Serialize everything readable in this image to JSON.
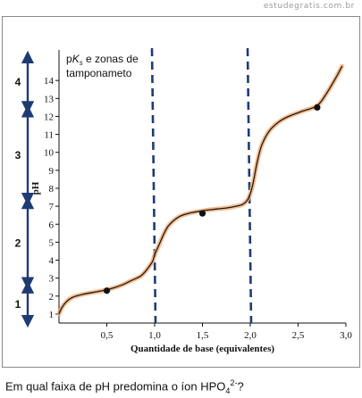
{
  "watermark": "estudegratis.com.br",
  "annotation": {
    "line1_prefix": "p",
    "line1_k": "K",
    "line1_sub": "s",
    "line1_suffix": " e zonas de",
    "line2": "tamponameto"
  },
  "question": {
    "text": "Em qual faixa de pH predomina o íon HPO",
    "subscript": "4",
    "superscript": "2-",
    "ending": "?"
  },
  "colors": {
    "curve": "#1a1a1a",
    "curve_glow": "#f2a66a",
    "dashed_lines": "#1f3b73",
    "arrows": "#1f3b73",
    "points": "#111111"
  },
  "chart_data": {
    "type": "line",
    "title": "",
    "xlabel": "Quantidade de base (equivalentes)",
    "ylabel": "pH",
    "xlim": [
      0,
      3.0
    ],
    "ylim": [
      0.5,
      15.5
    ],
    "xticks": [
      0.5,
      1.0,
      1.5,
      2.0,
      2.5,
      3.0
    ],
    "xtick_labels": [
      "0,5",
      "1,0",
      "1,5",
      "2,0",
      "2,5",
      "3,0"
    ],
    "yticks": [
      1,
      2,
      3,
      4,
      5,
      6,
      7,
      8,
      9,
      10,
      11,
      12,
      13,
      14
    ],
    "ytick_labels": [
      "1",
      "2",
      "3",
      "4",
      "5",
      "6",
      "7",
      "8",
      "9",
      "10",
      "11",
      "12",
      "13",
      "14"
    ],
    "grid": false,
    "series": [
      {
        "x": [
          0.0,
          0.03,
          0.08,
          0.15,
          0.25,
          0.35,
          0.5,
          0.65,
          0.75,
          0.85,
          0.9,
          0.95,
          0.98,
          1.0,
          1.05,
          1.1,
          1.15,
          1.25,
          1.35,
          1.5,
          1.65,
          1.75,
          1.85,
          1.92,
          1.97,
          2.0,
          2.03,
          2.07,
          2.12,
          2.2,
          2.3,
          2.4,
          2.55,
          2.7,
          2.8,
          2.9,
          2.96
        ],
        "y": [
          1.0,
          1.35,
          1.7,
          1.95,
          2.1,
          2.2,
          2.35,
          2.6,
          2.85,
          3.1,
          3.35,
          3.7,
          3.95,
          4.3,
          4.9,
          5.5,
          5.95,
          6.4,
          6.6,
          6.75,
          6.85,
          6.9,
          7.0,
          7.1,
          7.35,
          7.7,
          8.3,
          9.4,
          10.4,
          11.2,
          11.7,
          12.0,
          12.3,
          12.6,
          13.3,
          14.2,
          14.8
        ]
      }
    ],
    "points": [
      {
        "x": 0.5,
        "y": 2.3
      },
      {
        "x": 1.5,
        "y": 6.6
      },
      {
        "x": 2.7,
        "y": 12.5
      }
    ],
    "dashed_lines_x": [
      1.0,
      2.0
    ],
    "zones": [
      {
        "label": "1",
        "from": 0.5,
        "to": 2.6
      },
      {
        "label": "2",
        "from": 2.6,
        "to": 7.3
      },
      {
        "label": "3",
        "from": 7.3,
        "to": 12.4
      },
      {
        "label": "4",
        "from": 12.4,
        "to": 15.4
      }
    ]
  }
}
